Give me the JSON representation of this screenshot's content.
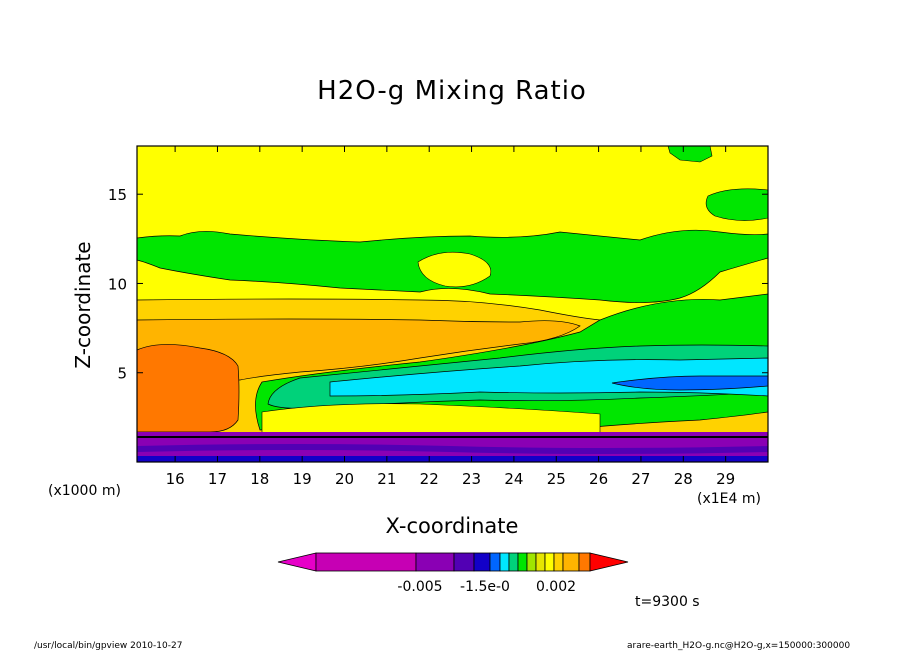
{
  "chart_data": {
    "type": "heatmap",
    "title": "H2O-g Mixing Ratio",
    "xlabel": "X-coordinate",
    "ylabel": "Z-coordinate",
    "x_unit_label": "(x1000 m)",
    "x_scale_label": "(x1E4 m)",
    "x_ticks": [
      "16",
      "17",
      "18",
      "19",
      "20",
      "21",
      "22",
      "23",
      "24",
      "25",
      "26",
      "27",
      "28",
      "29"
    ],
    "x_range": [
      15.1,
      30.0
    ],
    "y_ticks": [
      "5",
      "10",
      "15"
    ],
    "y_range": [
      0,
      17.7
    ],
    "colorbar_labels": [
      "-0.005",
      "-1.5e-0",
      "0.002"
    ],
    "time_label": "t=9300 s",
    "palette": [
      "#c600b4",
      "#8a00b4",
      "#5200b4",
      "#1200c8",
      "#0066ff",
      "#00e6ff",
      "#00d27a",
      "#00e600",
      "#a0e600",
      "#e6e600",
      "#ffff00",
      "#ffd200",
      "#ffb400",
      "#ff7800",
      "#ff0000"
    ],
    "bands": [
      {
        "name": "low-violet",
        "color": "#8a00b4",
        "z": [
          0.2,
          1.6
        ]
      },
      {
        "name": "warm-orange",
        "color": "#ff7800",
        "x": [
          15.1,
          17.4
        ],
        "z": [
          1.6,
          6.1
        ]
      },
      {
        "name": "amber",
        "color": "#ffb400",
        "z": [
          5.5,
          9.0
        ]
      },
      {
        "name": "yellow-lower",
        "color": "#ffff00",
        "z": [
          9.0,
          11.6
        ]
      },
      {
        "name": "green-upper",
        "color": "#00e600",
        "z": [
          11.6,
          12.9
        ]
      },
      {
        "name": "yellow-upper",
        "color": "#ffff00",
        "z": [
          12.9,
          17.7
        ]
      },
      {
        "name": "cyan",
        "color": "#00e6ff",
        "x": [
          21,
          30
        ],
        "z": [
          3.7,
          5.6
        ]
      },
      {
        "name": "blue-core",
        "color": "#0066ff",
        "x": [
          27.2,
          30
        ],
        "z": [
          4.2,
          4.7
        ]
      }
    ]
  },
  "footer": {
    "left": "/usr/local/bin/gpview  2010-10-27",
    "right": "arare-earth_H2O-g.nc@H2O-g,x=150000:300000"
  }
}
